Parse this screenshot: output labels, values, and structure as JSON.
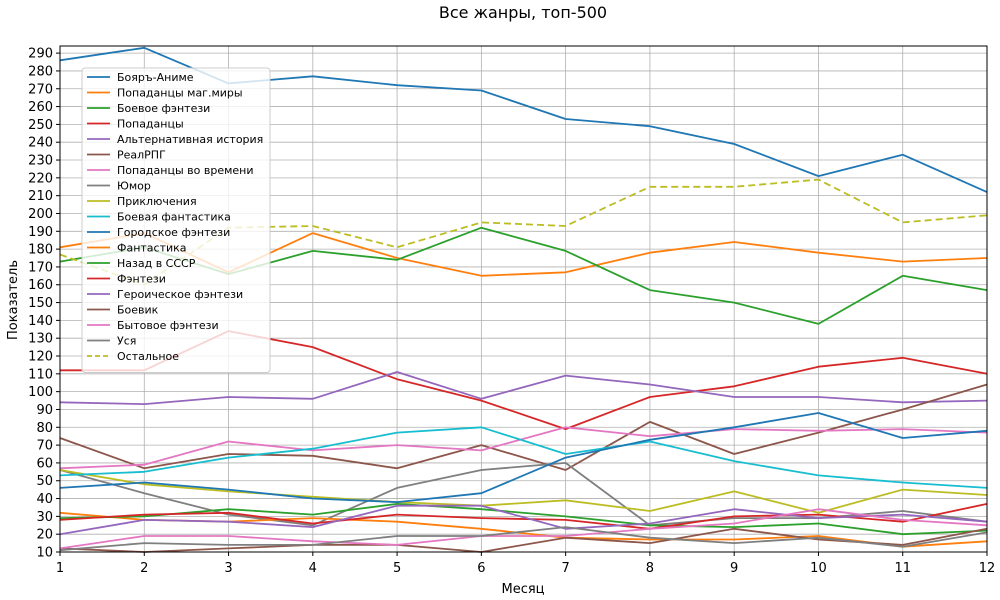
{
  "chart_data": {
    "type": "line",
    "title": "Все жанры, топ-500",
    "xlabel": "Месяц",
    "ylabel": "Показатель",
    "xlim": [
      1,
      12
    ],
    "ylim": [
      10,
      294
    ],
    "x": [
      1,
      2,
      3,
      4,
      5,
      6,
      7,
      8,
      9,
      10,
      11,
      12
    ],
    "x_ticks": [
      1,
      2,
      3,
      4,
      5,
      6,
      7,
      8,
      9,
      10,
      11,
      12
    ],
    "y_ticks": [
      10,
      20,
      30,
      40,
      50,
      60,
      70,
      80,
      90,
      100,
      110,
      120,
      130,
      140,
      150,
      160,
      170,
      180,
      190,
      200,
      210,
      220,
      230,
      240,
      250,
      260,
      270,
      280,
      290
    ],
    "grid": true,
    "legend_position": "upper-left",
    "series": [
      {
        "name": "Бояръ-Аниме",
        "color": "#1f77b4",
        "dashed": false,
        "values": [
          286,
          293,
          273,
          277,
          272,
          269,
          253,
          249,
          239,
          221,
          233,
          212
        ]
      },
      {
        "name": "Попаданцы маг.миры",
        "color": "#ff7f0e",
        "dashed": false,
        "values": [
          181,
          189,
          167,
          189,
          175,
          165,
          167,
          178,
          184,
          178,
          173,
          175
        ]
      },
      {
        "name": "Боевое фэнтези",
        "color": "#2ca02c",
        "dashed": false,
        "values": [
          173,
          181,
          166,
          179,
          174,
          192,
          179,
          157,
          150,
          138,
          165,
          157
        ]
      },
      {
        "name": "Попаданцы",
        "color": "#d62728",
        "dashed": false,
        "values": [
          112,
          112,
          134,
          125,
          107,
          95,
          79,
          97,
          103,
          114,
          119,
          110
        ]
      },
      {
        "name": "Альтернативная история",
        "color": "#9467bd",
        "dashed": false,
        "values": [
          94,
          93,
          97,
          96,
          111,
          96,
          109,
          104,
          97,
          97,
          94,
          95
        ]
      },
      {
        "name": "РеалРПГ",
        "color": "#8c564b",
        "dashed": false,
        "values": [
          74,
          57,
          65,
          64,
          57,
          70,
          56,
          83,
          65,
          77,
          90,
          104
        ]
      },
      {
        "name": "Попаданцы во времени",
        "color": "#e377c2",
        "dashed": false,
        "values": [
          57,
          59,
          72,
          67,
          70,
          67,
          80,
          75,
          79,
          78,
          79,
          77
        ]
      },
      {
        "name": "Юмор",
        "color": "#7f7f7f",
        "dashed": false,
        "values": [
          56,
          43,
          31,
          25,
          46,
          56,
          60,
          25,
          29,
          29,
          33,
          27
        ]
      },
      {
        "name": "Приключения",
        "color": "#bcbd22",
        "dashed": false,
        "values": [
          56,
          48,
          44,
          41,
          38,
          36,
          39,
          33,
          44,
          32,
          45,
          42
        ]
      },
      {
        "name": "Боевая фантастика",
        "color": "#17becf",
        "dashed": false,
        "values": [
          53,
          55,
          63,
          68,
          77,
          80,
          65,
          72,
          61,
          53,
          49,
          46
        ]
      },
      {
        "name": "Городское фэнтези",
        "color": "#1f77b4",
        "dashed": false,
        "values": [
          46,
          49,
          45,
          40,
          38,
          43,
          63,
          73,
          80,
          88,
          74,
          78
        ]
      },
      {
        "name": "Фантастика",
        "color": "#ff7f0e",
        "dashed": false,
        "values": [
          32,
          28,
          27,
          29,
          27,
          23,
          18,
          17,
          17,
          19,
          13,
          16
        ]
      },
      {
        "name": "Назад в СССР",
        "color": "#2ca02c",
        "dashed": false,
        "values": [
          29,
          30,
          34,
          31,
          37,
          34,
          30,
          25,
          24,
          26,
          20,
          22
        ]
      },
      {
        "name": "Фэнтези",
        "color": "#d62728",
        "dashed": false,
        "values": [
          28,
          31,
          32,
          26,
          31,
          29,
          28,
          23,
          30,
          31,
          27,
          37
        ]
      },
      {
        "name": "Героическое фэнтези",
        "color": "#9467bd",
        "dashed": false,
        "values": [
          20,
          28,
          27,
          24,
          36,
          36,
          23,
          26,
          34,
          29,
          31,
          27
        ]
      },
      {
        "name": "Боевик",
        "color": "#8c564b",
        "dashed": false,
        "values": [
          12,
          10,
          12,
          14,
          14,
          10,
          18,
          15,
          23,
          17,
          14,
          23
        ]
      },
      {
        "name": "Бытовое фэнтези",
        "color": "#e377c2",
        "dashed": false,
        "values": [
          12,
          19,
          19,
          16,
          14,
          19,
          19,
          23,
          26,
          34,
          28,
          25
        ]
      },
      {
        "name": "Уся",
        "color": "#7f7f7f",
        "dashed": false,
        "values": [
          11,
          15,
          14,
          14,
          19,
          19,
          24,
          18,
          15,
          18,
          13,
          21
        ]
      },
      {
        "name": "Остальное",
        "color": "#bcbd22",
        "dashed": true,
        "values": [
          177,
          160,
          192,
          193,
          181,
          195,
          193,
          215,
          215,
          219,
          195,
          199
        ]
      }
    ]
  }
}
